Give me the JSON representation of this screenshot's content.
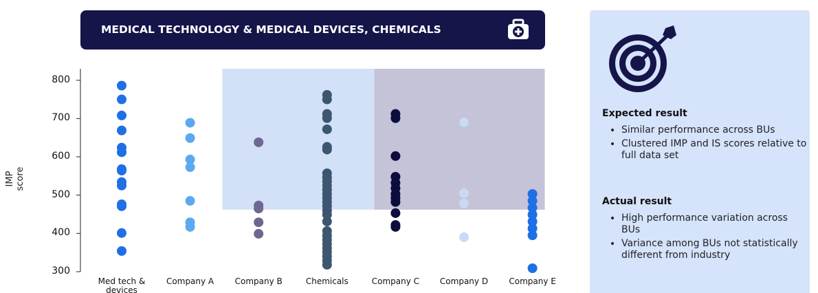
{
  "chart_data": {
    "type": "strip",
    "title": "MEDICAL TECHNOLOGY & MEDICAL DEVICES, CHEMICALS",
    "y_label": "IMP score",
    "categories": [
      "Med tech & devices",
      "Company A",
      "Company B",
      "Chemicals",
      "Company C",
      "Company D",
      "Company E"
    ],
    "colors": [
      "#1f6fe5",
      "#5ea8f0",
      "#6e6890",
      "#3d5670",
      "#0d0d3d",
      "#c8daf5",
      "#1f6fe5"
    ],
    "values": [
      [
        786,
        750,
        708,
        669,
        624,
        612,
        568,
        564,
        534,
        525,
        476,
        471,
        401,
        354
      ],
      [
        689,
        649,
        593,
        573,
        485,
        429,
        417
      ],
      [
        638,
        473,
        465,
        429,
        399
      ],
      [
        762,
        750,
        712,
        701,
        672,
        626,
        619,
        557,
        546,
        536,
        525,
        514,
        503,
        493,
        482,
        471,
        460,
        449,
        431,
        406,
        394,
        383,
        372,
        361,
        351,
        340,
        329,
        318
      ],
      [
        712,
        701,
        602,
        548,
        532,
        518,
        503,
        493,
        482,
        453,
        422,
        417
      ],
      [
        690,
        505,
        478,
        390
      ],
      [
        503,
        485,
        467,
        449,
        431,
        413,
        395,
        309
      ]
    ],
    "ylim": [
      300,
      830
    ],
    "yticks": [
      300,
      400,
      500,
      600,
      700,
      800
    ],
    "shaded_regions": [
      {
        "start": 1.47,
        "end": 3.69,
        "ymin": 462,
        "color": "#d3e1f8"
      },
      {
        "start": 3.69,
        "end": 6.18,
        "ymin": 462,
        "color": "#c4c3d8"
      }
    ]
  },
  "panel": {
    "expected_heading": "Expected result",
    "expected_items": [
      "Similar performance across BUs",
      "Clustered IMP and IS scores relative to full data set"
    ],
    "actual_heading": "Actual result",
    "actual_items": [
      "High performance variation across BUs",
      "Variance among BUs not statistically different from industry"
    ]
  }
}
